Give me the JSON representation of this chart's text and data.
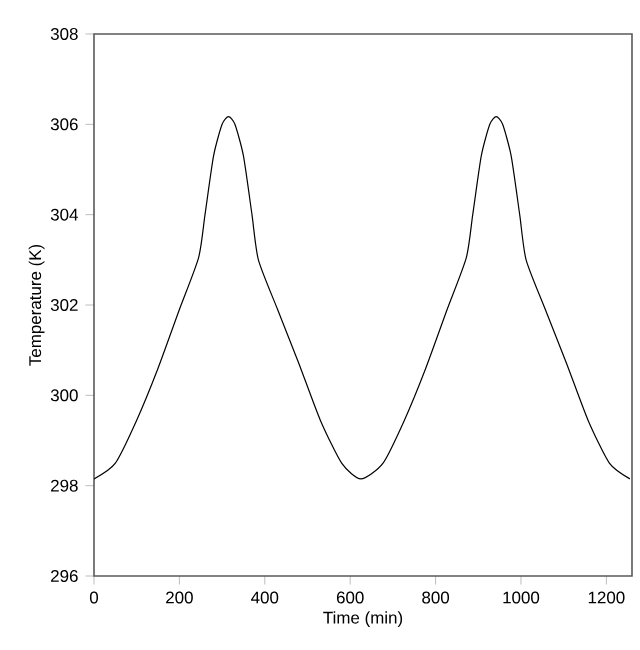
{
  "chart_data": {
    "type": "line",
    "xlabel": "Time (min)",
    "ylabel": "Temperature (K)",
    "x": [
      0,
      50,
      100,
      150,
      200,
      245,
      260,
      280,
      300,
      315,
      330,
      350,
      370,
      385,
      430,
      480,
      530,
      580,
      625,
      677,
      727,
      777,
      827,
      872,
      887,
      907,
      927,
      942,
      957,
      977,
      997,
      1012,
      1057,
      1107,
      1157,
      1207,
      1255
    ],
    "series": [
      {
        "color": "#000000",
        "values": [
          298.15,
          298.5,
          299.45,
          300.6,
          301.9,
          303.05,
          304.0,
          305.3,
          306.0,
          306.17,
          306.0,
          305.3,
          304.0,
          303.0,
          301.9,
          300.7,
          299.45,
          298.5,
          298.15,
          298.5,
          299.45,
          300.6,
          301.9,
          303.05,
          304.0,
          305.3,
          306.0,
          306.17,
          306.0,
          305.3,
          304.0,
          303.0,
          301.9,
          300.7,
          299.45,
          298.5,
          298.15
        ]
      }
    ],
    "xlim": [
      0,
      1260
    ],
    "ylim": [
      296,
      308
    ],
    "xticks": [
      0,
      200,
      400,
      600,
      800,
      1000,
      1200
    ],
    "yticks": [
      296,
      298,
      300,
      302,
      304,
      306,
      308
    ],
    "marker": "none",
    "line_style": "solid"
  }
}
